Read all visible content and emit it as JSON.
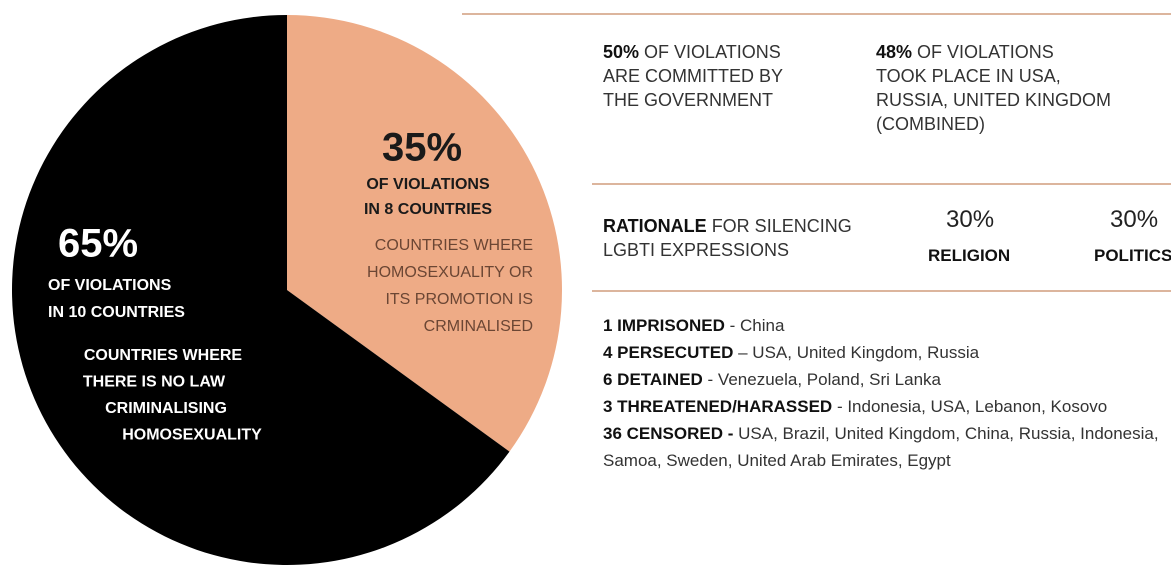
{
  "chart_data": {
    "type": "pie",
    "values": [
      35,
      65
    ],
    "value_labels": [
      "35%",
      "65%"
    ],
    "colors": [
      "#eeab86",
      "#000000"
    ],
    "subtitles": [
      [
        "OF VIOLATIONS",
        "IN 8 COUNTRIES"
      ],
      [
        "OF VIOLATIONS",
        "IN 10 COUNTRIES"
      ]
    ],
    "descriptions": [
      [
        "COUNTRIES WHERE",
        "HOMOSEXUALITY OR",
        "ITS PROMOTION IS",
        "CRMINALISED"
      ],
      [
        "COUNTRIES WHERE",
        "THERE IS NO LAW",
        "CRIMINALISING",
        "HOMOSEXUALITY"
      ]
    ]
  },
  "facts": [
    {
      "highlight": "50%",
      "lines": [
        "OF VIOLATIONS",
        "ARE COMMITTED BY",
        "THE GOVERNMENT"
      ]
    },
    {
      "highlight": "48%",
      "lines": [
        "OF VIOLATIONS",
        "TOOK PLACE IN USA,",
        "RUSSIA, UNITED KINGDOM",
        "(COMBINED)"
      ]
    }
  ],
  "rationale": {
    "highlight": "RATIONALE",
    "lines": [
      "FOR SILENCING",
      "LGBTI EXPRESSIONS"
    ],
    "items": [
      {
        "value": "30%",
        "label": "RELIGION"
      },
      {
        "value": "30%",
        "label": "POLITICS"
      }
    ]
  },
  "violations": [
    {
      "label": "1 IMPRISONED",
      "text": "- China"
    },
    {
      "label": "4 PERSECUTED",
      "text": "– USA, United Kingdom, Russia"
    },
    {
      "label": "6 DETAINED",
      "text": "- Venezuela, Poland, Sri Lanka"
    },
    {
      "label": "3 THREATENED/HARASSED",
      "text": "- Indonesia, USA, Lebanon, Kosovo"
    },
    {
      "label": "36 CENSORED -",
      "text": "USA, Brazil, United Kingdom, China, Russia, Indonesia, Samoa, Sweden, United Arab Emirates, Egypt"
    }
  ]
}
